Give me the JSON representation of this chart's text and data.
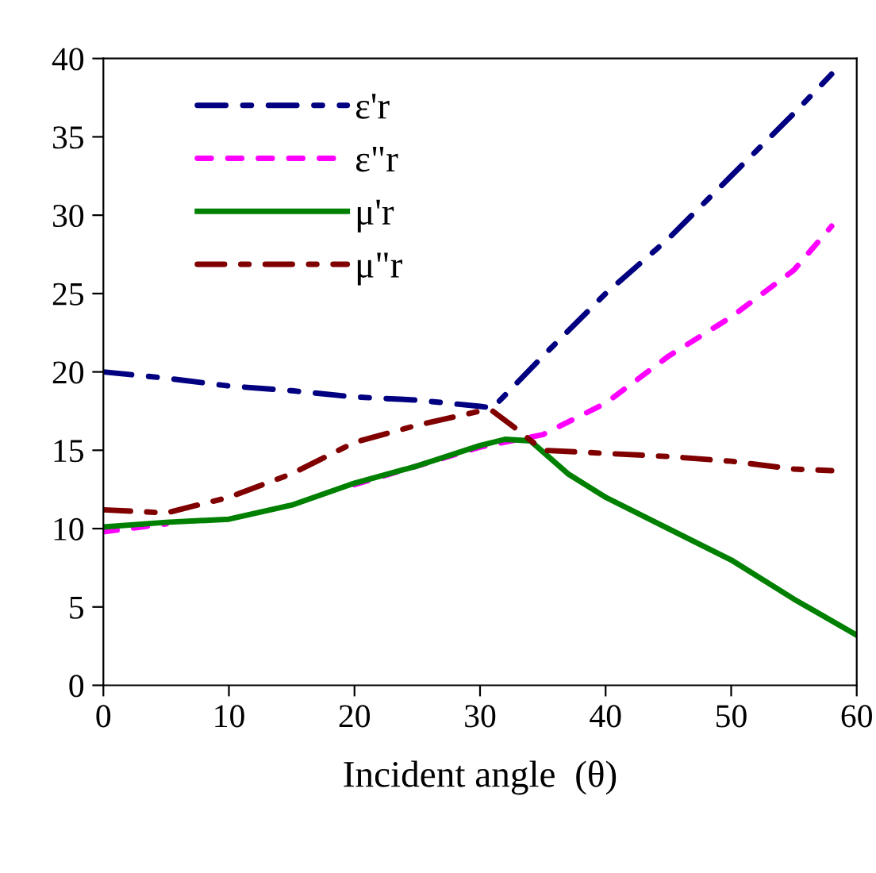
{
  "chart_data": {
    "type": "line",
    "xlabel": "Incident angle  (θ)",
    "xlim": [
      0,
      60
    ],
    "ylim": [
      0,
      40
    ],
    "xticks": [
      0,
      10,
      20,
      30,
      40,
      50,
      60
    ],
    "yticks": [
      0,
      5,
      10,
      15,
      20,
      25,
      30,
      35,
      40
    ],
    "grid": false,
    "legend": "top left",
    "series": [
      {
        "name": "ε'r",
        "color": "#000080",
        "line_style": "dashed",
        "x": [
          0,
          5,
          10,
          15,
          20,
          25,
          30,
          31,
          35,
          40,
          45,
          50,
          55,
          58
        ],
        "values": [
          20,
          19.6,
          19.1,
          18.8,
          18.4,
          18.2,
          17.8,
          17.7,
          21,
          25,
          28.5,
          32.5,
          36.5,
          39
        ]
      },
      {
        "name": "ε\"r",
        "color": "#ff00ff",
        "line_style": "dotted",
        "x": [
          0,
          5,
          10,
          15,
          20,
          25,
          30,
          35,
          40,
          45,
          50,
          55,
          58
        ],
        "values": [
          9.8,
          10.3,
          null,
          null,
          12.8,
          14,
          15.2,
          16,
          18,
          21,
          23.5,
          26.5,
          29.3
        ]
      },
      {
        "name": "μ'r",
        "color": "#008000",
        "line_style": "solid",
        "x": [
          0,
          5,
          10,
          15,
          20,
          25,
          30,
          32,
          34,
          37,
          40,
          45,
          50,
          55,
          60
        ],
        "values": [
          10.1,
          10.4,
          10.6,
          11.5,
          12.9,
          14,
          15.3,
          15.7,
          15.6,
          13.5,
          12,
          10,
          8,
          5.5,
          3.2
        ]
      },
      {
        "name": "μ\"r",
        "color": "#800000",
        "line_style": "dashed",
        "x": [
          0,
          5,
          10,
          15,
          20,
          25,
          30,
          31,
          33,
          35,
          40,
          45,
          50,
          55,
          58
        ],
        "values": [
          11.2,
          11,
          12,
          13.5,
          15.5,
          16.6,
          17.5,
          17.5,
          16.3,
          15,
          14.8,
          14.6,
          14.3,
          13.8,
          13.7
        ]
      }
    ]
  }
}
